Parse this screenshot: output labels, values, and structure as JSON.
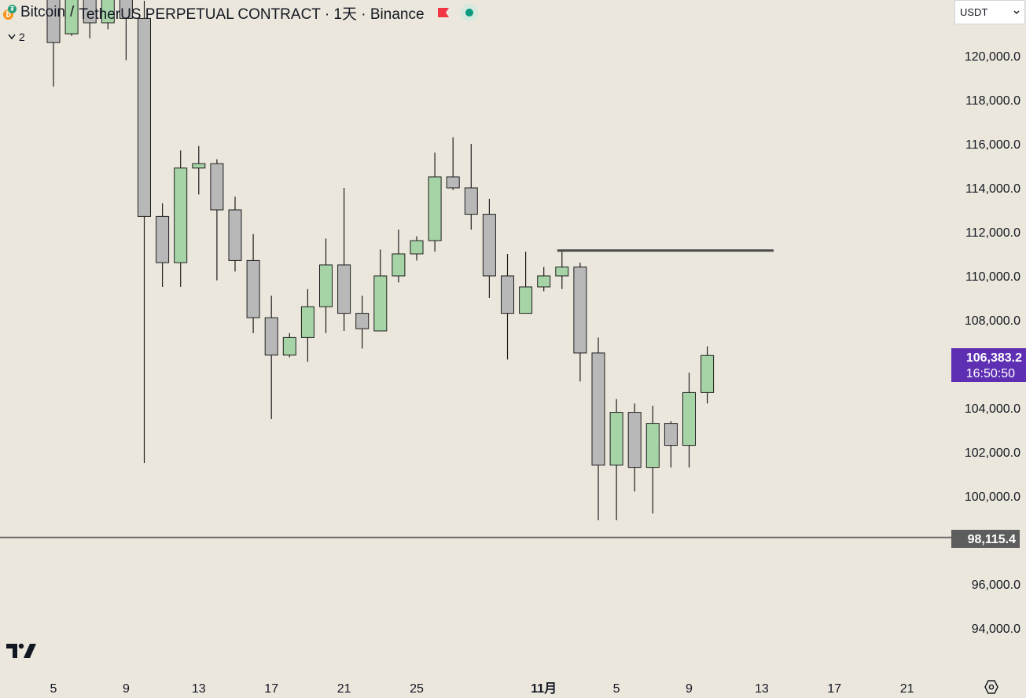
{
  "header": {
    "symbol": "Bitcoin",
    "separator": "/",
    "quote": "TetherUS PERPETUAL CONTRACT · 1天 · Binance",
    "indicator_count": "2"
  },
  "currency_select": {
    "value": "USDT"
  },
  "price_labels": {
    "current_price": "106,383.2",
    "countdown": "16:50:50",
    "line_price": "98,115.4"
  },
  "colors": {
    "up": "#a6d4a7",
    "down": "#b8b8b8",
    "border": "#1e1e1e",
    "current_label": "#5e2fb2",
    "line_label": "#5d5d5d",
    "background": "#ebe7dc"
  },
  "icons": {
    "logo": "tradingview-logo-icon",
    "settings": "settings-icon",
    "flag": "flag-icon",
    "market_status": "market-open-dot-icon"
  },
  "chart_data": {
    "type": "candlestick",
    "symbol": "BTCUSDT.P",
    "interval": "1D",
    "y_axis": {
      "range": [
        92700,
        122200
      ],
      "ticks": [
        94000,
        96000,
        100000,
        102000,
        104000,
        106000,
        108000,
        110000,
        112000,
        114000,
        116000,
        118000,
        120000
      ],
      "tick_labels": [
        "94,000.0",
        "96,000.0",
        "100,000.0",
        "102,000.0",
        "104,000.0",
        "106,000.0",
        "108,000.0",
        "110,000.0",
        "112,000.0",
        "114,000.0",
        "116,000.0",
        "118,000.0",
        "120,000.0"
      ]
    },
    "x_axis": {
      "ticks": [
        {
          "date": "2025-10-05",
          "label": "5"
        },
        {
          "date": "2025-10-09",
          "label": "9"
        },
        {
          "date": "2025-10-13",
          "label": "13"
        },
        {
          "date": "2025-10-17",
          "label": "17"
        },
        {
          "date": "2025-10-21",
          "label": "21"
        },
        {
          "date": "2025-10-25",
          "label": "25"
        },
        {
          "date": "2025-11-01",
          "label": "11月"
        },
        {
          "date": "2025-11-05",
          "label": "5"
        },
        {
          "date": "2025-11-09",
          "label": "9"
        },
        {
          "date": "2025-11-13",
          "label": "13"
        },
        {
          "date": "2025-11-17",
          "label": "17"
        },
        {
          "date": "2025-11-21",
          "label": "21"
        }
      ]
    },
    "candles": [
      {
        "date": "2025-10-05",
        "o": 124500,
        "h": 125300,
        "l": 118600,
        "c": 120600
      },
      {
        "date": "2025-10-06",
        "o": 121000,
        "h": 125800,
        "l": 120900,
        "c": 124800
      },
      {
        "date": "2025-10-07",
        "o": 124800,
        "h": 125600,
        "l": 120800,
        "c": 121500
      },
      {
        "date": "2025-10-08",
        "o": 121500,
        "h": 124100,
        "l": 121200,
        "c": 123300
      },
      {
        "date": "2025-10-09",
        "o": 123300,
        "h": 123700,
        "l": 119800,
        "c": 121700
      },
      {
        "date": "2025-10-10",
        "o": 121700,
        "h": 122500,
        "l": 101500,
        "c": 112700
      },
      {
        "date": "2025-10-11",
        "o": 112700,
        "h": 113300,
        "l": 109500,
        "c": 110600
      },
      {
        "date": "2025-10-12",
        "o": 110600,
        "h": 115700,
        "l": 109500,
        "c": 114900
      },
      {
        "date": "2025-10-13",
        "o": 114900,
        "h": 115900,
        "l": 113700,
        "c": 115100
      },
      {
        "date": "2025-10-14",
        "o": 115100,
        "h": 115300,
        "l": 109800,
        "c": 113000
      },
      {
        "date": "2025-10-15",
        "o": 113000,
        "h": 113600,
        "l": 110200,
        "c": 110700
      },
      {
        "date": "2025-10-16",
        "o": 110700,
        "h": 111900,
        "l": 107400,
        "c": 108100
      },
      {
        "date": "2025-10-17",
        "o": 108100,
        "h": 109100,
        "l": 103500,
        "c": 106400
      },
      {
        "date": "2025-10-18",
        "o": 106400,
        "h": 107400,
        "l": 106300,
        "c": 107200
      },
      {
        "date": "2025-10-19",
        "o": 107200,
        "h": 109400,
        "l": 106100,
        "c": 108600
      },
      {
        "date": "2025-10-20",
        "o": 108600,
        "h": 111700,
        "l": 107400,
        "c": 110500
      },
      {
        "date": "2025-10-21",
        "o": 110500,
        "h": 114000,
        "l": 107500,
        "c": 108300
      },
      {
        "date": "2025-10-22",
        "o": 108300,
        "h": 109100,
        "l": 106700,
        "c": 107600
      },
      {
        "date": "2025-10-23",
        "o": 107500,
        "h": 111200,
        "l": 107500,
        "c": 110000
      },
      {
        "date": "2025-10-24",
        "o": 110000,
        "h": 112100,
        "l": 109700,
        "c": 111000
      },
      {
        "date": "2025-10-25",
        "o": 111000,
        "h": 111800,
        "l": 110700,
        "c": 111600
      },
      {
        "date": "2025-10-26",
        "o": 111600,
        "h": 115600,
        "l": 111100,
        "c": 114500
      },
      {
        "date": "2025-10-27",
        "o": 114500,
        "h": 116300,
        "l": 113900,
        "c": 114000
      },
      {
        "date": "2025-10-28",
        "o": 114000,
        "h": 116000,
        "l": 112100,
        "c": 112800
      },
      {
        "date": "2025-10-29",
        "o": 112800,
        "h": 113500,
        "l": 109000,
        "c": 110000
      },
      {
        "date": "2025-10-30",
        "o": 110000,
        "h": 111000,
        "l": 106200,
        "c": 108300
      },
      {
        "date": "2025-10-31",
        "o": 108300,
        "h": 111100,
        "l": 108300,
        "c": 109500
      },
      {
        "date": "2025-11-01",
        "o": 109500,
        "h": 110400,
        "l": 109300,
        "c": 110000
      },
      {
        "date": "2025-11-02",
        "o": 110000,
        "h": 111100,
        "l": 109400,
        "c": 110400
      },
      {
        "date": "2025-11-03",
        "o": 110400,
        "h": 110600,
        "l": 105200,
        "c": 106500
      },
      {
        "date": "2025-11-04",
        "o": 106500,
        "h": 107200,
        "l": 98900,
        "c": 101400
      },
      {
        "date": "2025-11-05",
        "o": 101400,
        "h": 104400,
        "l": 98900,
        "c": 103800
      },
      {
        "date": "2025-11-06",
        "o": 103800,
        "h": 104200,
        "l": 100200,
        "c": 101300
      },
      {
        "date": "2025-11-07",
        "o": 101300,
        "h": 104100,
        "l": 99200,
        "c": 103300
      },
      {
        "date": "2025-11-08",
        "o": 103300,
        "h": 103400,
        "l": 101300,
        "c": 102300
      },
      {
        "date": "2025-11-09",
        "o": 102300,
        "h": 105600,
        "l": 101300,
        "c": 104700
      },
      {
        "date": "2025-11-10",
        "o": 104700,
        "h": 106800,
        "l": 104200,
        "c": 106383.2
      }
    ],
    "annotations": [
      {
        "type": "horizontal_ray",
        "price": 111150,
        "start_date": "2025-11-02",
        "end_date": "2025-11-14"
      },
      {
        "type": "horizontal_line",
        "price": 98115.4
      }
    ]
  }
}
